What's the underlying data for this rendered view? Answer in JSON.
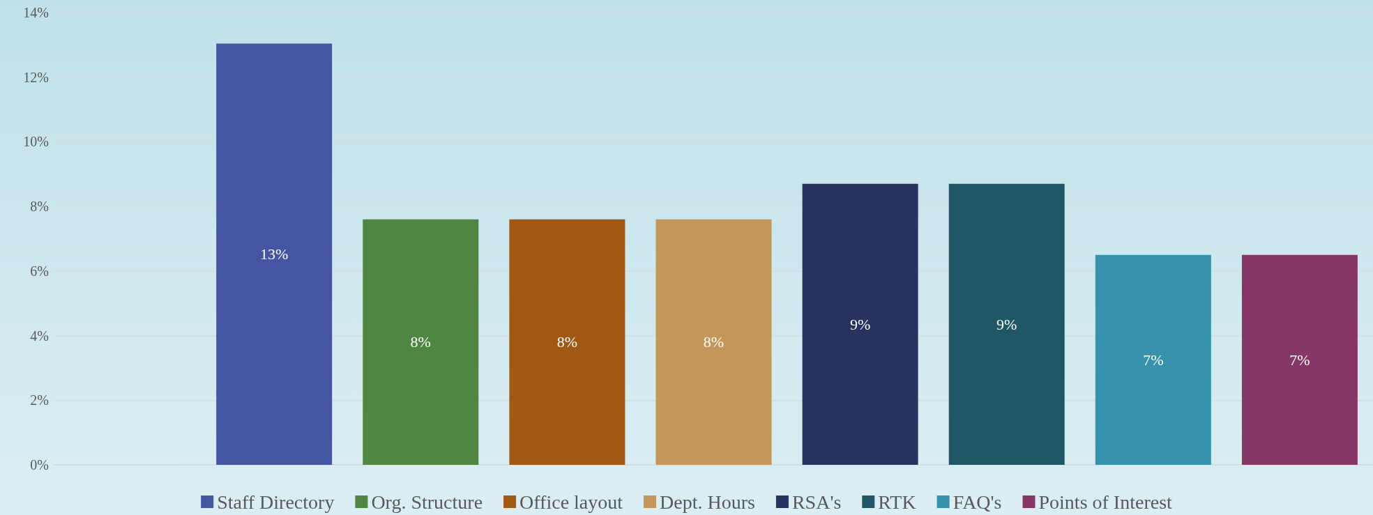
{
  "chart_data": {
    "type": "bar",
    "stacked": true,
    "categories": [
      null,
      null,
      null,
      null,
      null,
      null,
      null,
      null,
      null
    ],
    "series": [
      {
        "name": "Staff Directory",
        "color": "#4455a2",
        "values": [
          null,
          13.04,
          null,
          null,
          null,
          null,
          null,
          null,
          null
        ],
        "value_labels": [
          null,
          "13%",
          null,
          null,
          null,
          null,
          null,
          null,
          null
        ]
      },
      {
        "name": "Org. Structure",
        "color": "#4f8641",
        "values": [
          null,
          null,
          7.6,
          null,
          null,
          null,
          null,
          null,
          null
        ],
        "value_labels": [
          null,
          null,
          "8%",
          null,
          null,
          null,
          null,
          null,
          null
        ]
      },
      {
        "name": "Office layout",
        "color": "#a05812",
        "values": [
          null,
          null,
          null,
          7.6,
          null,
          null,
          null,
          null,
          null
        ],
        "value_labels": [
          null,
          null,
          null,
          "8%",
          null,
          null,
          null,
          null,
          null
        ]
      },
      {
        "name": "Dept. Hours",
        "color": "#c3965a",
        "values": [
          null,
          null,
          null,
          null,
          7.6,
          null,
          null,
          null,
          null
        ],
        "value_labels": [
          null,
          null,
          null,
          null,
          "8%",
          null,
          null,
          null,
          null
        ]
      },
      {
        "name": "RSA's",
        "color": "#29325e",
        "values": [
          null,
          null,
          null,
          null,
          null,
          8.7,
          null,
          null,
          null
        ],
        "value_labels": [
          null,
          null,
          null,
          null,
          null,
          "9%",
          null,
          null,
          null
        ]
      },
      {
        "name": "RTK",
        "color": "#1f5766",
        "values": [
          null,
          null,
          null,
          null,
          null,
          null,
          8.7,
          null,
          null
        ],
        "value_labels": [
          null,
          null,
          null,
          null,
          null,
          null,
          "9%",
          null,
          null
        ]
      },
      {
        "name": "FAQ's",
        "color": "#3793ad",
        "values": [
          null,
          null,
          null,
          null,
          null,
          null,
          null,
          6.5,
          null
        ],
        "value_labels": [
          null,
          null,
          null,
          null,
          null,
          null,
          null,
          "7%",
          null
        ]
      },
      {
        "name": "Points of Interest",
        "color": "#873766",
        "values": [
          null,
          null,
          null,
          null,
          null,
          null,
          null,
          null,
          6.5
        ],
        "value_labels": [
          null,
          null,
          null,
          null,
          null,
          null,
          null,
          null,
          "7%"
        ]
      }
    ],
    "ylim": [
      0,
      14
    ],
    "yticks": [
      {
        "value": 0,
        "label": "0%"
      },
      {
        "value": 2,
        "label": "2%"
      },
      {
        "value": 4,
        "label": "4%"
      },
      {
        "value": 6,
        "label": "6%"
      },
      {
        "value": 8,
        "label": "8%"
      },
      {
        "value": 10,
        "label": "10%"
      },
      {
        "value": 12,
        "label": "12%"
      },
      {
        "value": 14,
        "label": "14%"
      }
    ],
    "grid": "y",
    "legend": "bottom"
  }
}
